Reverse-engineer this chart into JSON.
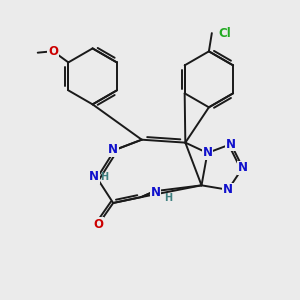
{
  "background_color": "#ebebeb",
  "bond_color": "#1a1a1a",
  "bond_width": 1.4,
  "atom_colors": {
    "N": "#1010cc",
    "O": "#cc0000",
    "Cl": "#22aa22",
    "H": "#408080"
  },
  "font_size": 8.5
}
